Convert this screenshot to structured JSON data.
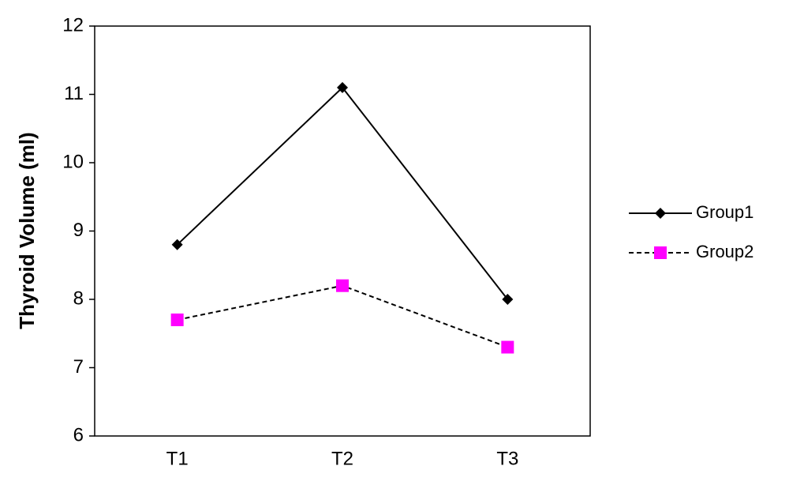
{
  "chart_data": {
    "type": "line",
    "y_label": "Thyroid Volume (ml)",
    "categories": [
      "T1",
      "T2",
      "T3"
    ],
    "series": [
      {
        "name": "Group1",
        "color": "#000000",
        "line_color": "#000000",
        "line_style": "solid",
        "marker": "diamond",
        "values": [
          8.8,
          11.1,
          8.0
        ]
      },
      {
        "name": "Group2",
        "color": "#ff00ff",
        "line_color": "#000000",
        "line_style": "dashed",
        "marker": "square",
        "values": [
          7.7,
          8.2,
          7.3
        ]
      }
    ],
    "ylim": [
      6,
      12
    ],
    "yticks": [
      6,
      7,
      8,
      9,
      10,
      11,
      12
    ],
    "grid": false,
    "legend": "right"
  }
}
